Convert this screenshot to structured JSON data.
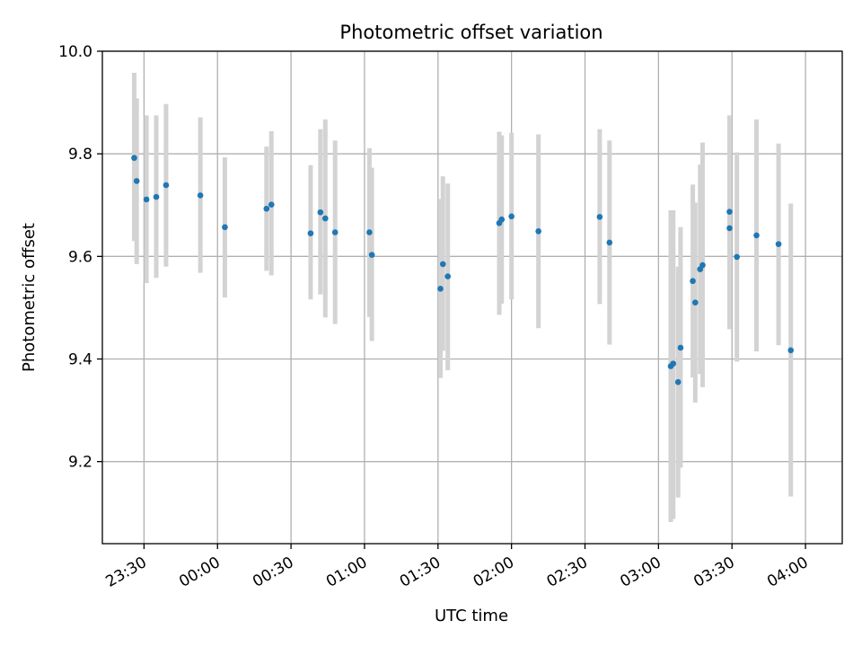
{
  "chart_data": {
    "type": "scatter",
    "title": "Photometric offset variation",
    "xlabel": "UTC time",
    "ylabel": "Photometric offset",
    "xlim": [
      "23:13",
      "04:15"
    ],
    "ylim": [
      9.04,
      10.0
    ],
    "grid": true,
    "x_ticks": [
      "23:30",
      "00:00",
      "00:30",
      "01:00",
      "01:30",
      "02:00",
      "02:30",
      "03:00",
      "03:30",
      "04:00"
    ],
    "y_ticks": [
      "9.2",
      "9.4",
      "9.6",
      "9.8",
      "10.0"
    ],
    "colors": {
      "marker": "#1f77b4",
      "errorbar": "#d3d3d3",
      "grid": "#b0b0b0"
    },
    "points": [
      {
        "x": "23:26",
        "y": 9.792,
        "err_low": 9.63,
        "err_high": 9.958
      },
      {
        "x": "23:27",
        "y": 9.747,
        "err_low": 9.585,
        "err_high": 9.908
      },
      {
        "x": "23:31",
        "y": 9.711,
        "err_low": 9.548,
        "err_high": 9.875
      },
      {
        "x": "23:35",
        "y": 9.716,
        "err_low": 9.558,
        "err_high": 9.875
      },
      {
        "x": "23:39",
        "y": 9.739,
        "err_low": 9.58,
        "err_high": 9.897
      },
      {
        "x": "23:53",
        "y": 9.719,
        "err_low": 9.568,
        "err_high": 9.871
      },
      {
        "x": "00:03",
        "y": 9.657,
        "err_low": 9.52,
        "err_high": 9.793
      },
      {
        "x": "00:20",
        "y": 9.693,
        "err_low": 9.572,
        "err_high": 9.814
      },
      {
        "x": "00:22",
        "y": 9.701,
        "err_low": 9.563,
        "err_high": 9.844
      },
      {
        "x": "00:38",
        "y": 9.645,
        "err_low": 9.516,
        "err_high": 9.778
      },
      {
        "x": "00:42",
        "y": 9.686,
        "err_low": 9.526,
        "err_high": 9.848
      },
      {
        "x": "00:44",
        "y": 9.674,
        "err_low": 9.481,
        "err_high": 9.867
      },
      {
        "x": "00:48",
        "y": 9.647,
        "err_low": 9.468,
        "err_high": 9.826
      },
      {
        "x": "01:02",
        "y": 9.647,
        "err_low": 9.482,
        "err_high": 9.811
      },
      {
        "x": "01:03",
        "y": 9.603,
        "err_low": 9.435,
        "err_high": 9.773
      },
      {
        "x": "01:31",
        "y": 9.537,
        "err_low": 9.363,
        "err_high": 9.712
      },
      {
        "x": "01:32",
        "y": 9.585,
        "err_low": 9.416,
        "err_high": 9.756
      },
      {
        "x": "01:34",
        "y": 9.561,
        "err_low": 9.378,
        "err_high": 9.742
      },
      {
        "x": "01:55",
        "y": 9.665,
        "err_low": 9.486,
        "err_high": 9.843
      },
      {
        "x": "01:56",
        "y": 9.672,
        "err_low": 9.508,
        "err_high": 9.836
      },
      {
        "x": "02:00",
        "y": 9.678,
        "err_low": 9.516,
        "err_high": 9.841
      },
      {
        "x": "02:11",
        "y": 9.649,
        "err_low": 9.46,
        "err_high": 9.838
      },
      {
        "x": "02:36",
        "y": 9.677,
        "err_low": 9.507,
        "err_high": 9.848
      },
      {
        "x": "02:40",
        "y": 9.627,
        "err_low": 9.428,
        "err_high": 9.826
      },
      {
        "x": "03:05",
        "y": 9.386,
        "err_low": 9.082,
        "err_high": 9.69
      },
      {
        "x": "03:06",
        "y": 9.391,
        "err_low": 9.088,
        "err_high": 9.69
      },
      {
        "x": "03:08",
        "y": 9.355,
        "err_low": 9.13,
        "err_high": 9.58
      },
      {
        "x": "03:09",
        "y": 9.422,
        "err_low": 9.188,
        "err_high": 9.657
      },
      {
        "x": "03:14",
        "y": 9.552,
        "err_low": 9.364,
        "err_high": 9.74
      },
      {
        "x": "03:15",
        "y": 9.51,
        "err_low": 9.315,
        "err_high": 9.705
      },
      {
        "x": "03:17",
        "y": 9.575,
        "err_low": 9.371,
        "err_high": 9.779
      },
      {
        "x": "03:18",
        "y": 9.583,
        "err_low": 9.345,
        "err_high": 9.822
      },
      {
        "x": "03:29",
        "y": 9.687,
        "err_low": 9.498,
        "err_high": 9.875
      },
      {
        "x": "03:29",
        "y": 9.655,
        "err_low": 9.458,
        "err_high": 9.852
      },
      {
        "x": "03:32",
        "y": 9.599,
        "err_low": 9.395,
        "err_high": 9.803
      },
      {
        "x": "03:40",
        "y": 9.641,
        "err_low": 9.415,
        "err_high": 9.867
      },
      {
        "x": "03:49",
        "y": 9.624,
        "err_low": 9.427,
        "err_high": 9.82
      },
      {
        "x": "03:54",
        "y": 9.417,
        "err_low": 9.132,
        "err_high": 9.703
      }
    ]
  }
}
